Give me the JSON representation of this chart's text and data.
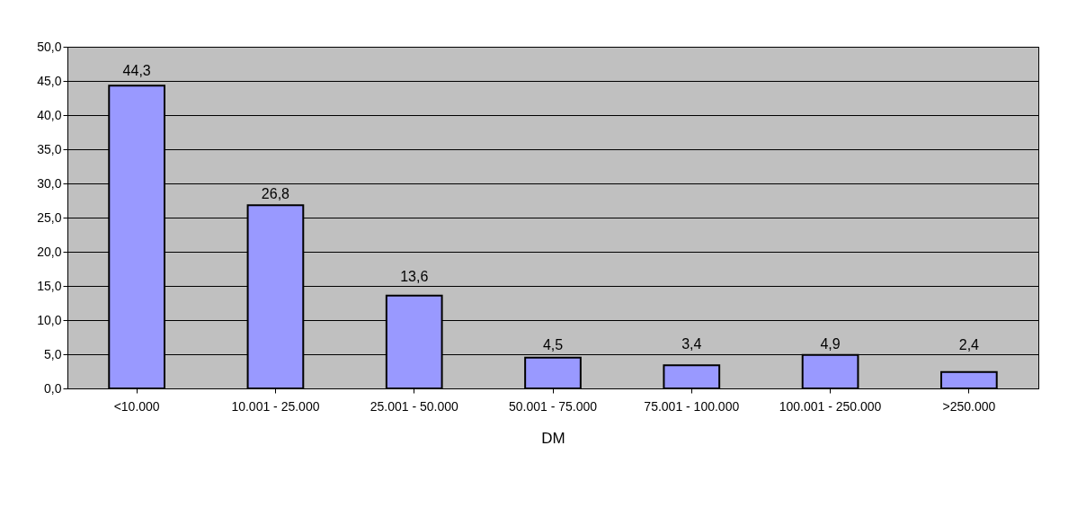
{
  "chart_data": {
    "type": "bar",
    "xlabel": "DM",
    "categories": [
      "<10.000",
      "10.001 - 25.000",
      "25.001 - 50.000",
      "50.001 - 75.000",
      "75.001 - 100.000",
      "100.001 - 250.000",
      ">250.000"
    ],
    "values": [
      44.3,
      26.8,
      13.6,
      4.5,
      3.4,
      4.9,
      2.4
    ],
    "value_labels": [
      "44,3",
      "26,8",
      "13,6",
      "4,5",
      "3,4",
      "4,9",
      "2,4"
    ],
    "color": "#9999ff",
    "ylim": [
      0,
      50
    ],
    "yticks": [
      {
        "value": 0,
        "label": "0,0"
      },
      {
        "value": 5,
        "label": "5,0"
      },
      {
        "value": 10,
        "label": "10,0"
      },
      {
        "value": 15,
        "label": "15,0"
      },
      {
        "value": 20,
        "label": "20,0"
      },
      {
        "value": 25,
        "label": "25,0"
      },
      {
        "value": 30,
        "label": "30,0"
      },
      {
        "value": 35,
        "label": "35,0"
      },
      {
        "value": 40,
        "label": "40,0"
      },
      {
        "value": 45,
        "label": "45,0"
      },
      {
        "value": 50,
        "label": "50,0"
      }
    ],
    "grid": "y"
  }
}
